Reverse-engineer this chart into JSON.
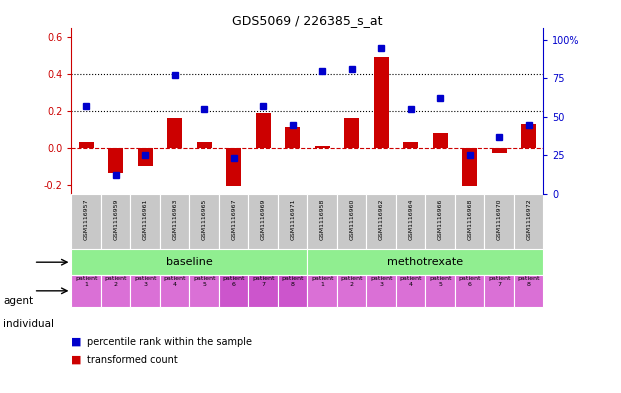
{
  "title": "GDS5069 / 226385_s_at",
  "samples": [
    "GSM1116957",
    "GSM1116959",
    "GSM1116961",
    "GSM1116963",
    "GSM1116965",
    "GSM1116967",
    "GSM1116969",
    "GSM1116971",
    "GSM1116958",
    "GSM1116960",
    "GSM1116962",
    "GSM1116964",
    "GSM1116966",
    "GSM1116968",
    "GSM1116970",
    "GSM1116972"
  ],
  "transformed_count": [
    0.03,
    -0.14,
    -0.1,
    0.16,
    0.03,
    -0.21,
    0.19,
    0.11,
    0.01,
    0.16,
    0.49,
    0.03,
    0.08,
    -0.21,
    -0.03,
    0.13
  ],
  "percentile_rank": [
    57,
    12,
    25,
    77,
    55,
    23,
    57,
    45,
    80,
    81,
    95,
    55,
    62,
    25,
    37,
    45
  ],
  "bar_color": "#cc0000",
  "dot_color": "#0000cc",
  "ylim_left": [
    -0.25,
    0.65
  ],
  "ylim_right": [
    0,
    108
  ],
  "yticks_left": [
    -0.2,
    0.0,
    0.2,
    0.4,
    0.6
  ],
  "yticks_right": [
    0,
    25,
    50,
    75,
    100
  ],
  "hline_y": 0.0,
  "dotted_lines": [
    0.2,
    0.4
  ],
  "agent_labels": [
    "baseline",
    "methotrexate"
  ],
  "agent_color_baseline": "#90ee90",
  "agent_color_methotrexate": "#90ee90",
  "ind_color": "#da70d6",
  "ind_highlight": [
    5,
    6,
    7
  ],
  "ind_highlight_color": "#cc55cc",
  "row_label_agent": "agent",
  "row_label_individual": "individual",
  "legend_bar": "transformed count",
  "legend_dot": "percentile rank within the sample",
  "gsm_bg": "#c8c8c8",
  "background_color": "#ffffff"
}
